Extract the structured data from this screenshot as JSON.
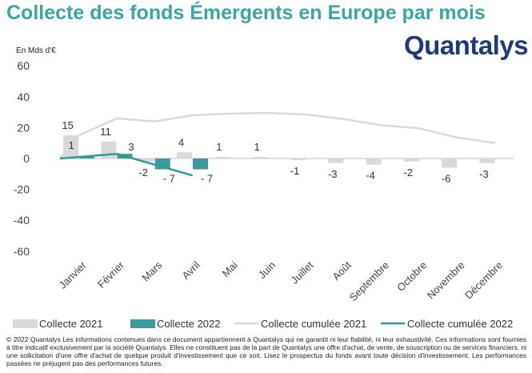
{
  "title": "Collecte des fonds Émergents en Europe par mois",
  "logo_text": "Quantalys",
  "unit_label": "En Mds d'€",
  "disclaimer": "© 2022 Quantalys Les informations contenues dans ce document appartiennent à Quantalys qui ne garantit ni leur fiabilité, ni leur exhaustivité. Ces informations sont fournies à titre indicatif exclusivement par la société Quantalys. Elles ne constituent pas de la part de Quantalys une offre d'achat, de vente, de souscription ou de services financiers, ni une sollicitation d'une offre d'achat de quelque produit d'investissement que ce soit. Lisez le prospectus du fonds avant toute décision d'investissement. Les performances passées ne préjugent pas des performances futures.",
  "colors": {
    "title": "#3aa6a6",
    "bar_2021": "#d9d9d9",
    "bar_2022": "#3b9b9b",
    "line_2021": "#d9d9d9",
    "line_2022": "#2e9c95",
    "logo": "#1f3a7a"
  },
  "chart_data": {
    "type": "bar",
    "title": "Collecte des fonds Émergents en Europe par mois",
    "ylabel": "En Mds d'€",
    "ylim": [
      -60,
      60
    ],
    "yticks": [
      60,
      40,
      20,
      0,
      -20,
      -40,
      -60
    ],
    "grid": false,
    "legend_position": "bottom",
    "categories": [
      "Janvier",
      "Février",
      "Mars",
      "Avril",
      "Mai",
      "Juin",
      "Juillet",
      "Août",
      "Septembre",
      "Octobre",
      "Novembre",
      "Décembre"
    ],
    "series": [
      {
        "name": "Collecte 2021",
        "kind": "bar",
        "values": [
          15,
          11,
          -2,
          4,
          1,
          1,
          -1,
          -3,
          -4,
          -2,
          -6,
          -3
        ],
        "labels": [
          "15",
          "11",
          "-2",
          "4",
          "1",
          "1",
          "-1",
          "-3",
          "-4",
          "-2",
          "-6",
          "-3"
        ]
      },
      {
        "name": "Collecte 2022",
        "kind": "bar",
        "values": [
          1,
          3,
          -7,
          -7,
          null,
          null,
          null,
          null,
          null,
          null,
          null,
          null
        ],
        "labels": [
          "1",
          "3",
          "- 7",
          "- 7",
          "",
          "",
          "",
          "",
          "",
          "",
          "",
          ""
        ]
      },
      {
        "name": "Collecte cumulée 2021",
        "kind": "line",
        "start": 0,
        "values": [
          15,
          26,
          24,
          28,
          29,
          29.5,
          28.5,
          25.5,
          21.5,
          19.5,
          13.5,
          10
        ]
      },
      {
        "name": "Collecte cumulée 2022",
        "kind": "line",
        "start": 0,
        "values": [
          1,
          3,
          -4,
          -11,
          null,
          null,
          null,
          null,
          null,
          null,
          null,
          null
        ]
      }
    ]
  }
}
